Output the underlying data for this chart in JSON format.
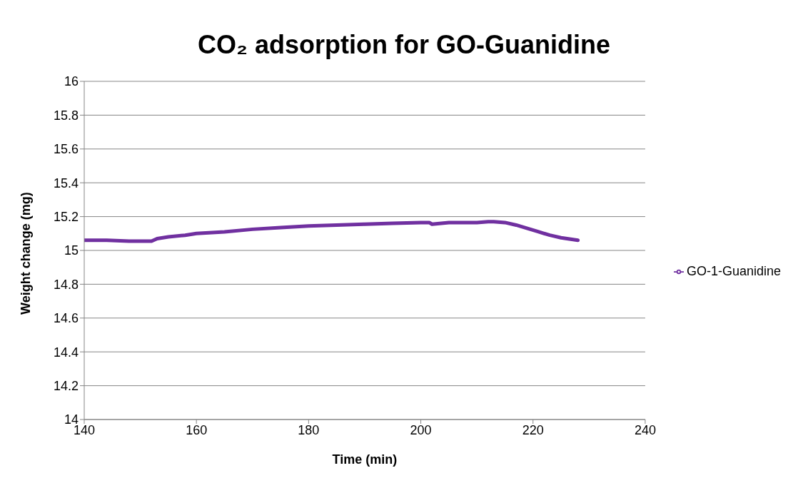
{
  "chart_data": {
    "type": "line",
    "title": "CO₂ adsorption for GO-Guanidine",
    "xlabel": "Time (min)",
    "ylabel": "Weight change (mg)",
    "x": [
      140,
      144,
      148,
      151,
      152,
      153,
      155,
      158,
      160,
      165,
      170,
      175,
      180,
      185,
      190,
      195,
      200,
      201.5,
      202,
      205,
      210,
      212,
      213,
      215,
      217,
      219,
      221,
      223,
      225,
      228
    ],
    "series": [
      {
        "name": "GO-1-Guanidine",
        "color": "#7030a0",
        "values": [
          15.06,
          15.06,
          15.055,
          15.055,
          15.055,
          15.07,
          15.08,
          15.09,
          15.1,
          15.11,
          15.125,
          15.135,
          15.145,
          15.15,
          15.155,
          15.16,
          15.165,
          15.165,
          15.155,
          15.165,
          15.165,
          15.17,
          15.17,
          15.165,
          15.15,
          15.13,
          15.11,
          15.09,
          15.075,
          15.06
        ]
      }
    ],
    "xlim": [
      140,
      240
    ],
    "xticks": [
      140,
      160,
      180,
      200,
      220,
      240
    ],
    "ylim": [
      14,
      16
    ],
    "yticks": [
      14,
      14.2,
      14.4,
      14.6,
      14.8,
      15,
      15.2,
      15.4,
      15.6,
      15.8,
      16
    ],
    "grid": "y",
    "legend": "right",
    "marker": "none",
    "line_style": "solid"
  }
}
